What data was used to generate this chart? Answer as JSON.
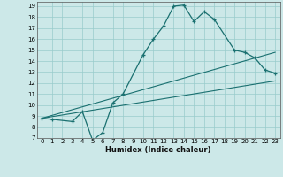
{
  "xlabel": "Humidex (Indice chaleur)",
  "xlim": [
    -0.5,
    23.5
  ],
  "ylim": [
    7,
    19.4
  ],
  "xticks": [
    0,
    1,
    2,
    3,
    4,
    5,
    6,
    7,
    8,
    9,
    10,
    11,
    12,
    13,
    14,
    15,
    16,
    17,
    18,
    19,
    20,
    21,
    22,
    23
  ],
  "yticks": [
    7,
    8,
    9,
    10,
    11,
    12,
    13,
    14,
    15,
    16,
    17,
    18,
    19
  ],
  "bg_color": "#cce8e8",
  "grid_color": "#99cccc",
  "line_color": "#1a7070",
  "line1_x": [
    0,
    1,
    3,
    4,
    5,
    6,
    7,
    8,
    10,
    11,
    12,
    13,
    14,
    15,
    16,
    17,
    19,
    20,
    21,
    22,
    23
  ],
  "line1_y": [
    8.8,
    8.7,
    8.5,
    9.4,
    6.8,
    7.5,
    10.2,
    11.0,
    14.6,
    16.0,
    17.2,
    19.0,
    19.1,
    17.6,
    18.5,
    17.8,
    15.0,
    14.8,
    14.3,
    13.2,
    12.9
  ],
  "line2_x": [
    0,
    23
  ],
  "line2_y": [
    8.8,
    12.2
  ],
  "line3_x": [
    0,
    23
  ],
  "line3_y": [
    8.8,
    14.8
  ],
  "xlabel_fontsize": 6,
  "tick_fontsize": 5
}
